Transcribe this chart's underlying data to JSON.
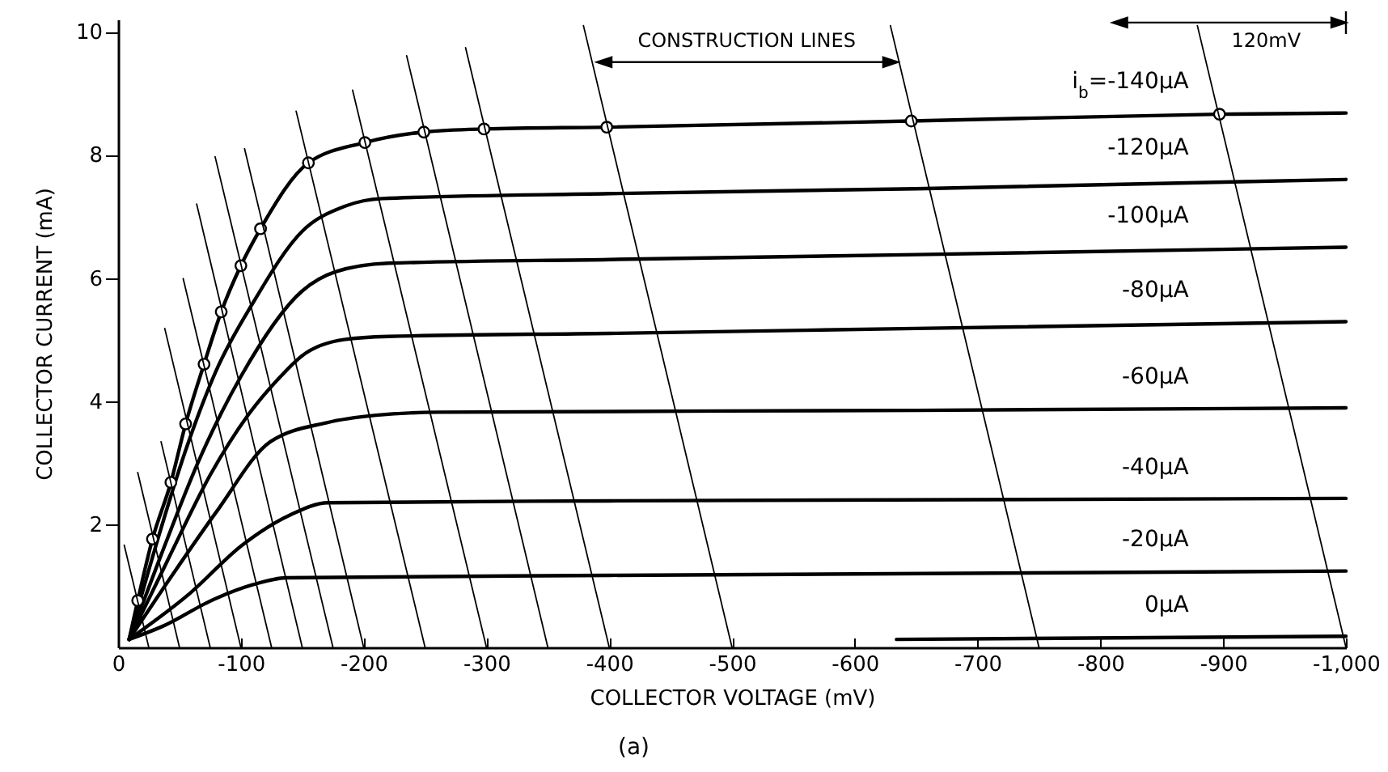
{
  "chart_data": {
    "type": "line",
    "xlabel": "COLLECTOR VOLTAGE (mV)",
    "ylabel": "COLLECTOR CURRENT (mA)",
    "xlim": [
      0,
      -1000
    ],
    "ylim": [
      0,
      10.2
    ],
    "xticks": [
      0,
      -100,
      -200,
      -300,
      -400,
      -500,
      -600,
      -700,
      -800,
      -900,
      {
        "value": -1000,
        "label": "-1,000"
      }
    ],
    "yticks": [
      2,
      4,
      6,
      8,
      10
    ],
    "grid": false,
    "legend": false,
    "line_style": "solid",
    "annotations": [
      "CONSTRUCTION LINES",
      "120mV",
      "(a)"
    ],
    "series": [
      {
        "name": "i$_{b}$=-140μA",
        "color": "#000000",
        "x": [
          -9,
          -16,
          -28,
          -43,
          -55,
          -70,
          -84,
          -100,
          -116,
          -155,
          -201,
          -249,
          -298,
          -398,
          -646,
          -897,
          -1000
        ],
        "values": [
          0.13,
          0.76,
          1.76,
          2.68,
          3.63,
          4.6,
          5.45,
          6.2,
          6.8,
          7.87,
          8.2,
          8.37,
          8.42,
          8.45,
          8.55,
          8.66,
          8.68
        ]
      },
      {
        "name": "-120μA",
        "color": "#000000",
        "x": [
          -9,
          -30,
          -55,
          -80,
          -110,
          -150,
          -184,
          -215,
          -400,
          -650,
          -1000
        ],
        "values": [
          0.13,
          1.6,
          3.2,
          4.5,
          5.6,
          6.76,
          7.16,
          7.29,
          7.37,
          7.45,
          7.6
        ]
      },
      {
        "name": "-100μA",
        "color": "#000000",
        "x": [
          -9,
          -35,
          -65,
          -100,
          -150,
          -177,
          -220,
          -400,
          -650,
          -1000
        ],
        "values": [
          0.13,
          1.5,
          3.0,
          4.4,
          5.79,
          6.1,
          6.24,
          6.3,
          6.38,
          6.5
        ]
      },
      {
        "name": "-80μA",
        "color": "#000000",
        "x": [
          -9,
          -40,
          -75,
          -105,
          -130,
          -150,
          -184,
          -220,
          -400,
          -650,
          -1000
        ],
        "values": [
          0.13,
          1.4,
          2.8,
          3.75,
          4.35,
          4.74,
          5.0,
          5.05,
          5.1,
          5.18,
          5.29
        ]
      },
      {
        "name": "-60μA",
        "color": "#000000",
        "x": [
          -9,
          -45,
          -80,
          -124,
          -170,
          -210,
          -260,
          -650,
          -1000
        ],
        "values": [
          0.13,
          1.2,
          2.2,
          3.34,
          3.65,
          3.77,
          3.82,
          3.85,
          3.89
        ]
      },
      {
        "name": "-40μA",
        "color": "#000000",
        "x": [
          -9,
          -58,
          -101,
          -140,
          -171,
          -400,
          -1000
        ],
        "values": [
          0.13,
          0.87,
          1.66,
          2.15,
          2.35,
          2.38,
          2.42
        ]
      },
      {
        "name": "-20μA",
        "color": "#000000",
        "x": [
          -9,
          -36,
          -79,
          -110,
          -137,
          -400,
          -1000
        ],
        "values": [
          0.13,
          0.34,
          0.79,
          1.02,
          1.13,
          1.17,
          1.24
        ]
      },
      {
        "name": "0μA",
        "color": "#000000",
        "x": [
          -634,
          -1000
        ],
        "values": [
          0.13,
          0.18
        ]
      },
      {
        "type": "scatter",
        "marker": "circle",
        "color": "#000000",
        "x": [
          -16,
          -28,
          -43,
          -55,
          -70,
          -84,
          -100,
          -116,
          -155,
          -201,
          -249,
          -298,
          -398,
          -646,
          -897
        ],
        "values": [
          0.76,
          1.76,
          2.68,
          3.63,
          4.6,
          5.45,
          6.2,
          6.8,
          7.87,
          8.2,
          8.37,
          8.42,
          8.45,
          8.55,
          8.66
        ]
      },
      {
        "color": "#000000",
        "x": [
          -25,
          -5
        ],
        "values": [
          0,
          1.66
        ]
      },
      {
        "color": "#000000",
        "x": [
          -50,
          -16
        ],
        "values": [
          0,
          2.84
        ]
      },
      {
        "color": "#000000",
        "x": [
          -75,
          -35
        ],
        "values": [
          0,
          3.34
        ]
      },
      {
        "color": "#000000",
        "x": [
          -100,
          -38
        ],
        "values": [
          0,
          5.18
        ]
      },
      {
        "color": "#000000",
        "x": [
          -125,
          -53
        ],
        "values": [
          0,
          5.99
        ]
      },
      {
        "color": "#000000",
        "x": [
          -150,
          -64
        ],
        "values": [
          0,
          7.2
        ]
      },
      {
        "color": "#000000",
        "x": [
          -175,
          -79
        ],
        "values": [
          0,
          7.97
        ]
      },
      {
        "color": "#000000",
        "x": [
          -200,
          -103
        ],
        "values": [
          0,
          8.1
        ]
      },
      {
        "color": "#000000",
        "x": [
          -250,
          -145
        ],
        "values": [
          0,
          8.71
        ]
      },
      {
        "color": "#000000",
        "x": [
          -300,
          -191
        ],
        "values": [
          0,
          9.05
        ]
      },
      {
        "color": "#000000",
        "x": [
          -350,
          -235
        ],
        "values": [
          0,
          9.61
        ]
      },
      {
        "color": "#000000",
        "x": [
          -400,
          -283
        ],
        "values": [
          0,
          9.74
        ]
      },
      {
        "color": "#000000",
        "x": [
          -500,
          -379
        ],
        "values": [
          0,
          10.1
        ]
      },
      {
        "color": "#000000",
        "x": [
          -750,
          -629
        ],
        "values": [
          0,
          10.1
        ]
      },
      {
        "color": "#000000",
        "x": [
          -1000,
          -879
        ],
        "values": [
          0,
          10.1
        ]
      }
    ]
  }
}
